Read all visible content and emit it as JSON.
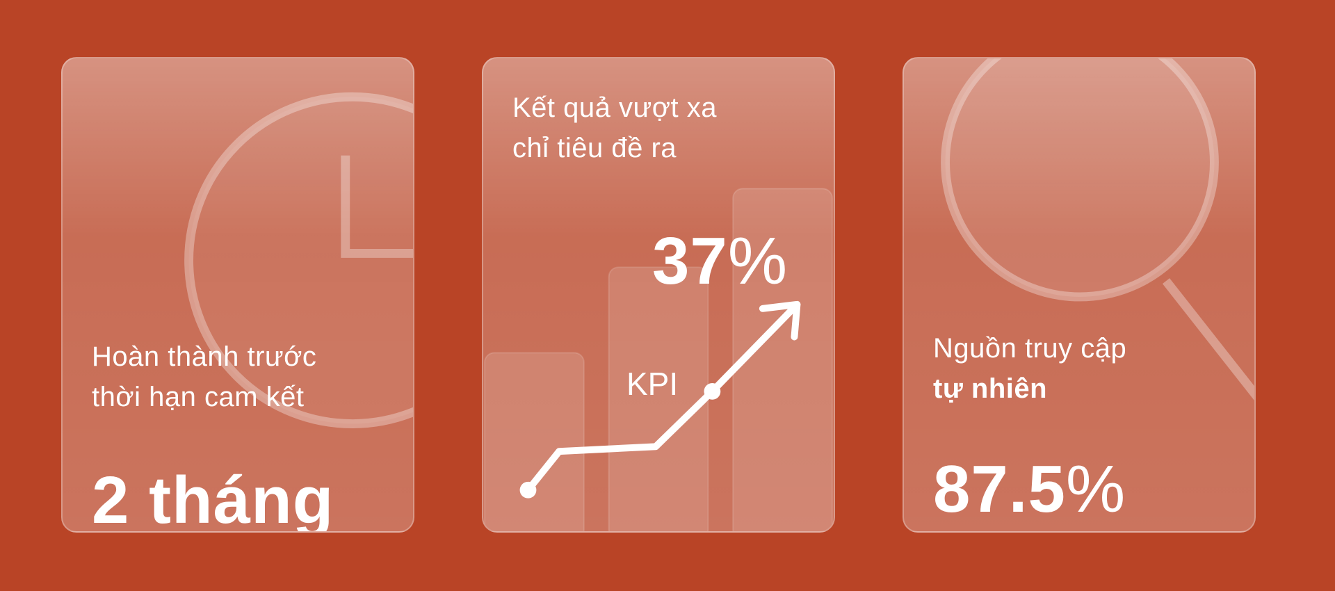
{
  "cards": {
    "time": {
      "caption_line1": "Hoàn thành trước",
      "caption_line2": "thời hạn cam kết",
      "value": "2 tháng",
      "icon": "clock-icon"
    },
    "kpi": {
      "caption_line1": "Kết quả vượt xa",
      "caption_line2": "chỉ tiêu đề ra",
      "value_number": "37",
      "value_unit": "%",
      "label": "KPI",
      "icon": "growth-chart-icon"
    },
    "traffic": {
      "caption_line1": "Nguồn truy cập",
      "caption_line2": "tự nhiên",
      "value_number": "87.5",
      "value_unit": "%",
      "icon": "magnifier-icon"
    }
  },
  "colors": {
    "background": "#b94426",
    "text": "#ffffff"
  }
}
